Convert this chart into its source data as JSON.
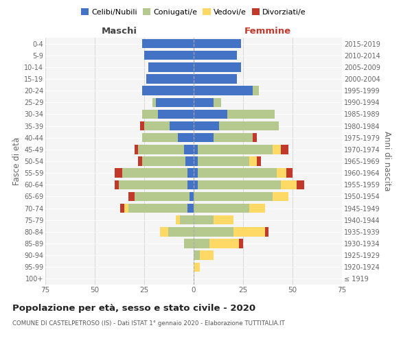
{
  "age_groups": [
    "100+",
    "95-99",
    "90-94",
    "85-89",
    "80-84",
    "75-79",
    "70-74",
    "65-69",
    "60-64",
    "55-59",
    "50-54",
    "45-49",
    "40-44",
    "35-39",
    "30-34",
    "25-29",
    "20-24",
    "15-19",
    "10-14",
    "5-9",
    "0-4"
  ],
  "birth_years": [
    "≤ 1919",
    "1920-1924",
    "1925-1929",
    "1930-1934",
    "1935-1939",
    "1940-1944",
    "1945-1949",
    "1950-1954",
    "1955-1959",
    "1960-1964",
    "1965-1969",
    "1970-1974",
    "1975-1979",
    "1980-1984",
    "1985-1989",
    "1990-1994",
    "1995-1999",
    "2000-2004",
    "2005-2009",
    "2010-2014",
    "2015-2019"
  ],
  "maschi": {
    "celibi": [
      0,
      0,
      0,
      0,
      0,
      0,
      3,
      2,
      3,
      3,
      4,
      5,
      8,
      12,
      18,
      19,
      26,
      24,
      23,
      25,
      26
    ],
    "coniugati": [
      0,
      0,
      0,
      5,
      13,
      7,
      30,
      28,
      35,
      33,
      22,
      23,
      18,
      13,
      8,
      2,
      0,
      0,
      0,
      0,
      0
    ],
    "vedovi": [
      0,
      0,
      0,
      0,
      4,
      2,
      2,
      0,
      0,
      0,
      0,
      0,
      0,
      0,
      0,
      0,
      0,
      0,
      0,
      0,
      0
    ],
    "divorziati": [
      0,
      0,
      0,
      0,
      0,
      0,
      2,
      3,
      2,
      4,
      2,
      2,
      0,
      2,
      0,
      0,
      0,
      0,
      0,
      0,
      0
    ]
  },
  "femmine": {
    "nubili": [
      0,
      0,
      0,
      0,
      0,
      0,
      0,
      0,
      2,
      2,
      2,
      2,
      10,
      13,
      17,
      10,
      30,
      22,
      24,
      22,
      24
    ],
    "coniugate": [
      0,
      0,
      3,
      8,
      20,
      10,
      28,
      40,
      42,
      40,
      26,
      38,
      20,
      30,
      24,
      4,
      3,
      0,
      0,
      0,
      0
    ],
    "vedove": [
      0,
      3,
      7,
      15,
      16,
      10,
      8,
      8,
      8,
      5,
      4,
      4,
      0,
      0,
      0,
      0,
      0,
      0,
      0,
      0,
      0
    ],
    "divorziate": [
      0,
      0,
      0,
      2,
      2,
      0,
      0,
      0,
      4,
      3,
      2,
      4,
      2,
      0,
      0,
      0,
      0,
      0,
      0,
      0,
      0
    ]
  },
  "colors": {
    "celibi": "#4472c4",
    "coniugati": "#b5c98e",
    "vedovi": "#ffd966",
    "divorziati": "#c0392b"
  },
  "xlim": 75,
  "title": "Popolazione per età, sesso e stato civile - 2020",
  "subtitle": "COMUNE DI CASTELPETROSO (IS) - Dati ISTAT 1° gennaio 2020 - Elaborazione TUTTITALIA.IT",
  "xlabel_left": "Maschi",
  "xlabel_right": "Femmine",
  "ylabel_left": "Fasce di età",
  "ylabel_right": "Anni di nascita",
  "legend_labels": [
    "Celibi/Nubili",
    "Coniugati/e",
    "Vedovi/e",
    "Divorziati/e"
  ],
  "bg_color": "#f5f5f5",
  "grid_color": "#ffffff",
  "text_color": "#666666"
}
